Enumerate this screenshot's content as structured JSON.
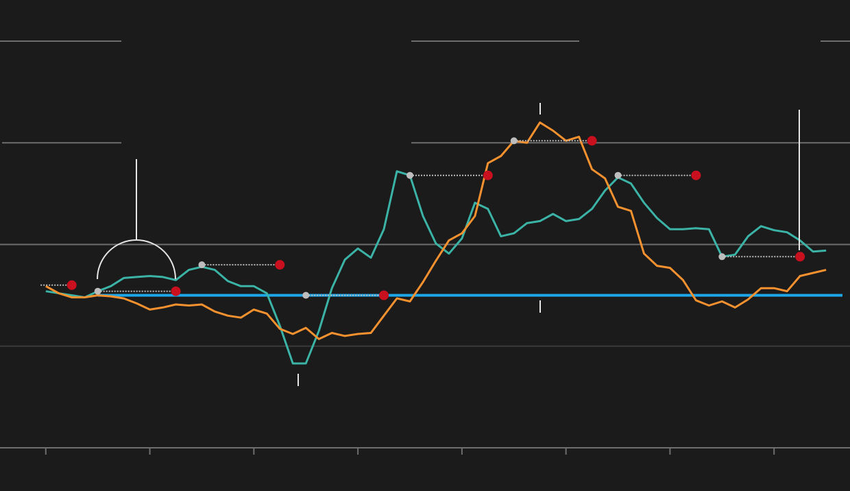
{
  "chart_data": {
    "type": "line",
    "x": [
      0,
      0.125,
      0.25,
      0.375,
      0.5,
      0.625,
      0.75,
      0.875,
      1,
      1.125,
      1.25,
      1.375,
      1.5,
      1.625,
      1.75,
      1.875,
      2,
      2.125,
      2.25,
      2.375,
      2.5,
      2.625,
      2.75,
      2.875,
      3,
      3.125,
      3.25,
      3.375,
      3.5,
      3.625,
      3.75,
      3.875,
      4,
      4.125,
      4.25,
      4.375,
      4.5,
      4.625,
      4.75,
      4.875,
      5,
      5.125,
      5.25,
      5.375,
      5.5,
      5.625,
      5.75,
      5.875,
      6,
      6.125,
      6.25,
      6.375,
      6.5,
      6.625,
      6.75,
      6.875,
      7,
      7.125,
      7.25,
      7.375,
      7.5
    ],
    "series": [
      {
        "color": "#3bb3a6",
        "values": [
          1.54,
          1.52,
          1.5,
          1.48,
          1.54,
          1.59,
          1.67,
          1.68,
          1.69,
          1.68,
          1.65,
          1.75,
          1.78,
          1.75,
          1.64,
          1.59,
          1.59,
          1.52,
          1.2,
          0.83,
          0.83,
          1.15,
          1.57,
          1.85,
          1.96,
          1.87,
          2.15,
          2.72,
          2.68,
          2.28,
          2.01,
          1.91,
          2.06,
          2.41,
          2.35,
          2.08,
          2.11,
          2.21,
          2.23,
          2.3,
          2.23,
          2.25,
          2.35,
          2.53,
          2.66,
          2.6,
          2.41,
          2.26,
          2.15,
          2.15,
          2.16,
          2.15,
          1.88,
          1.9,
          2.08,
          2.18,
          2.14,
          2.12,
          2.04,
          1.93,
          1.94
        ]
      },
      {
        "color": "#f5912f",
        "values": [
          1.59,
          1.52,
          1.48,
          1.48,
          1.5,
          1.49,
          1.47,
          1.42,
          1.36,
          1.38,
          1.41,
          1.4,
          1.41,
          1.34,
          1.3,
          1.28,
          1.36,
          1.32,
          1.17,
          1.12,
          1.18,
          1.07,
          1.13,
          1.1,
          1.12,
          1.13,
          1.3,
          1.47,
          1.44,
          1.63,
          1.84,
          2.04,
          2.11,
          2.28,
          2.8,
          2.87,
          3.02,
          3.0,
          3.2,
          3.12,
          3.02,
          3.06,
          2.74,
          2.65,
          2.37,
          2.33,
          1.91,
          1.79,
          1.77,
          1.65,
          1.45,
          1.4,
          1.44,
          1.38,
          1.46,
          1.57,
          1.57,
          1.54,
          1.69,
          1.72,
          1.75
        ]
      }
    ],
    "baseline": {
      "value": 1.5,
      "from": 0.5,
      "color": "#1ea7e8"
    },
    "lags": [
      {
        "x": -0.05,
        "x2": 0.25,
        "y": 1.6
      },
      {
        "x": 0.5,
        "x2": 1.25,
        "y": 1.54
      },
      {
        "x": 1.5,
        "x2": 2.25,
        "y": 1.8
      },
      {
        "x": 2.5,
        "x2": 3.25,
        "y": 1.5
      },
      {
        "x": 3.5,
        "x2": 4.25,
        "y": 2.68
      },
      {
        "x": 4.5,
        "x2": 5.25,
        "y": 3.02
      },
      {
        "x": 5.5,
        "x2": 6.25,
        "y": 2.68
      },
      {
        "x": 6.5,
        "x2": 7.25,
        "y": 1.88
      }
    ],
    "xlim": [
      -0.44,
      7.73
    ],
    "xticks": [
      0,
      1,
      2,
      3,
      4,
      5,
      6,
      7
    ],
    "ylim": [
      0,
      4
    ],
    "yticks": [
      1,
      2,
      3,
      4
    ],
    "grid": true
  }
}
